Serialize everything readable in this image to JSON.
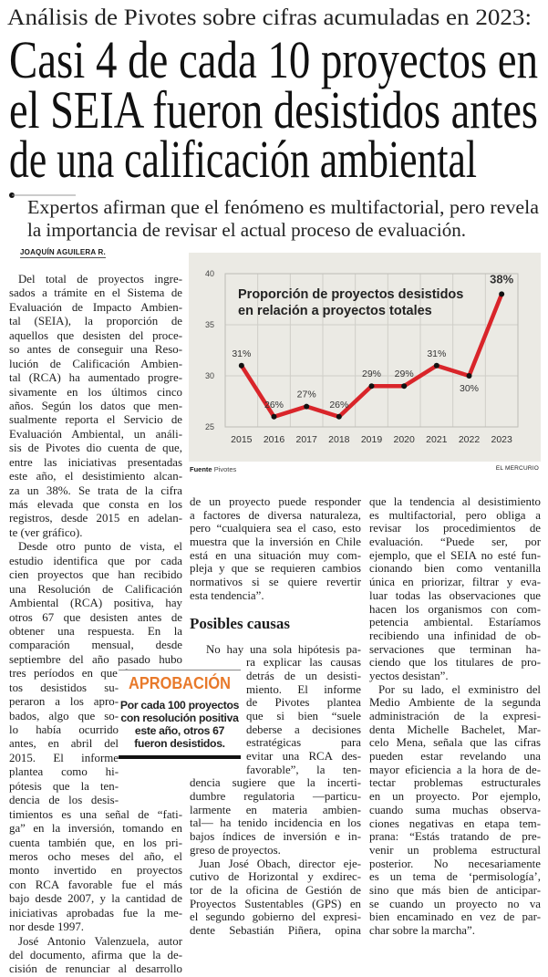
{
  "header": {
    "kicker": "Análisis de Pivotes sobre cifras acumuladas en 2023:",
    "headline_lines": [
      "Casi 4 de cada 10 proyectos en",
      "el SEIA fueron desistidos antes",
      "de una calificación ambiental"
    ],
    "subhead_lines": [
      "Expertos afirman que el fenómeno es multifactorial, pero revela",
      "la importancia de revisar el actual proceso de evaluación."
    ],
    "byline": "JOAQUÍN AGUILERA R."
  },
  "article": {
    "col1": [
      [
        "Del total de proyectos ingre-",
        "sados a trámite en el Sistema de",
        "Evaluación de Impacto Ambien-",
        "tal (SEIA), la proporción de",
        "aquellos que desisten del proce-",
        "so antes de conseguir una Reso-",
        "lución de Calificación Ambien-",
        "tal (RCA) ha aumentado progre-",
        "sivamente en los últimos cinco",
        "años. Según los datos que men-",
        "sualmente reporta el Servicio de",
        "Evaluación Ambiental, un análi-",
        "sis de Pivotes dio cuenta de que,",
        "entre las iniciativas presentadas",
        "este año, el desistimiento alcan-",
        "za un 38%. Se trata de la cifra",
        "más elevada que consta en los",
        "registros, desde 2015 en adelan-",
        "te (ver gráfico)."
      ],
      [
        "Desde otro punto de vista, el",
        "estudio identifica que por cada",
        "cien proyectos que han recibido",
        "una Resolución de Calificación",
        "Ambiental (RCA) positiva, hay",
        "otros 67 que desisten antes de",
        "obtener una respuesta. En la",
        "comparación mensual, desde",
        "septiembre del año pasado hubo",
        "tres períodos en que los proyec-",
        "tos desistidos su-",
        "peraron a los apro-",
        "bados, algo que so-",
        "lo había ocurrido",
        "antes, en abril del",
        "2015. El informe",
        "plantea como hi-",
        "pótesis que la ten-",
        "dencia de los desis-",
        "timientos es una señal de “fati-",
        "ga” en la inversión, tomando en",
        "cuenta también que, en los pri-",
        "meros ocho meses del año, el",
        "monto invertido en proyectos",
        "con RCA favorable fue el más",
        "bajo desde 2007, y la cantidad de",
        "iniciativas aprobadas fue la me-",
        "nor desde 1997."
      ],
      [
        "José Antonio Valenzuela, autor",
        "del documento, afirma que la de-",
        "cisión de renunciar al desarrollo"
      ]
    ],
    "col2_top": [
      "de un proyecto puede responder",
      "a factores de diversa naturaleza,",
      "pero “cualquiera sea el caso, esto",
      "muestra que la inversión en Chile",
      "está en una situación muy com-",
      "pleja y que se requieren cambios",
      "normativos si se quiere revertir",
      "esta tendencia”."
    ],
    "section_heading": "Posibles causas",
    "col2_bottom": [
      [
        "No hay una sola hipótesis pa-",
        "ra explicar las causas",
        "detrás de un desisti-",
        "miento. El informe",
        "de Pivotes plantea",
        "que si bien “suele",
        "deberse a decisiones",
        "estratégicas para",
        "evitar una RCA des-",
        "favorable”, la ten-",
        "dencia sugiere que la incerti-",
        "dumbre regulatoria —particu-",
        "larmente en materia ambien-",
        "tal— ha tenido incidencia en los",
        "bajos índices de inversión e in-",
        "greso de proyectos."
      ],
      [
        "Juan José Obach, director eje-",
        "cutivo de Horizontal y exdirec-",
        "tor de la oficina de Gestión de",
        "Proyectos Sustentables (GPS) en",
        "el segundo gobierno del expresi-",
        "dente Sebastián Piñera, opina"
      ]
    ],
    "col3": [
      [
        "que la tendencia al desistimiento",
        "es multifactorial, pero obliga a",
        "revisar los procedimientos de",
        "evaluación. “Puede ser, por",
        "ejemplo, que el SEIA no esté fun-",
        "cionando bien como ventanilla",
        "única en priorizar, filtrar y eva-",
        "luar todas las observaciones que",
        "hacen los organismos con com-",
        "petencia ambiental. Estaríamos",
        "recibiendo una infinidad de ob-",
        "servaciones que terminan ha-",
        "ciendo que los titulares de pro-",
        "yectos desistan”."
      ],
      [
        "Por su lado, el exministro del",
        "Medio Ambiente de la segunda",
        "administración de la expresi-",
        "denta Michelle Bachelet, Mar-",
        "celo Mena, señala que las cifras",
        "pueden estar revelando una",
        "mayor eficiencia a la hora de de-",
        "tectar problemas estructurales",
        "en un proyecto. Por ejemplo,",
        "cuando suma muchas observa-",
        "ciones negativas en etapa tem-",
        "prana: “Estás tratando de pre-",
        "venir un problema estructural",
        "posterior. No necesariamente",
        "es un tema de ‘permisología’,",
        "sino que más bien de anticipar-",
        "se cuando un proyecto no va",
        "bien encaminado en vez de par-",
        "char sobre la marcha”."
      ]
    ]
  },
  "callout": {
    "title": "APROBACIÓN",
    "title_color": "#e8792a",
    "text_lines": [
      "Por cada 100 proyectos",
      "con resolución positiva",
      "este año, otros 67",
      "fueron desistidos."
    ]
  },
  "chart_source": {
    "label": "Fuente",
    "value": "Pivotes",
    "credit": "EL MERCURIO"
  },
  "chart_data": {
    "type": "line",
    "title_lines": [
      "Proporción de proyectos desistidos",
      "en relación a proyectos totales"
    ],
    "categories": [
      "2015",
      "2016",
      "2017",
      "2018",
      "2019",
      "2020",
      "2021",
      "2022",
      "2023"
    ],
    "values": [
      31,
      26,
      27,
      26,
      29,
      29,
      31,
      30,
      38
    ],
    "labels": [
      "31%",
      "26%",
      "27%",
      "26%",
      "29%",
      "29%",
      "31%",
      "30%",
      "38%"
    ],
    "yticks": [
      "25",
      "30",
      "35",
      "40"
    ],
    "ylim": [
      25,
      40
    ],
    "line_color": "#d9252a",
    "grid": true,
    "xlabel": "",
    "ylabel": ""
  }
}
